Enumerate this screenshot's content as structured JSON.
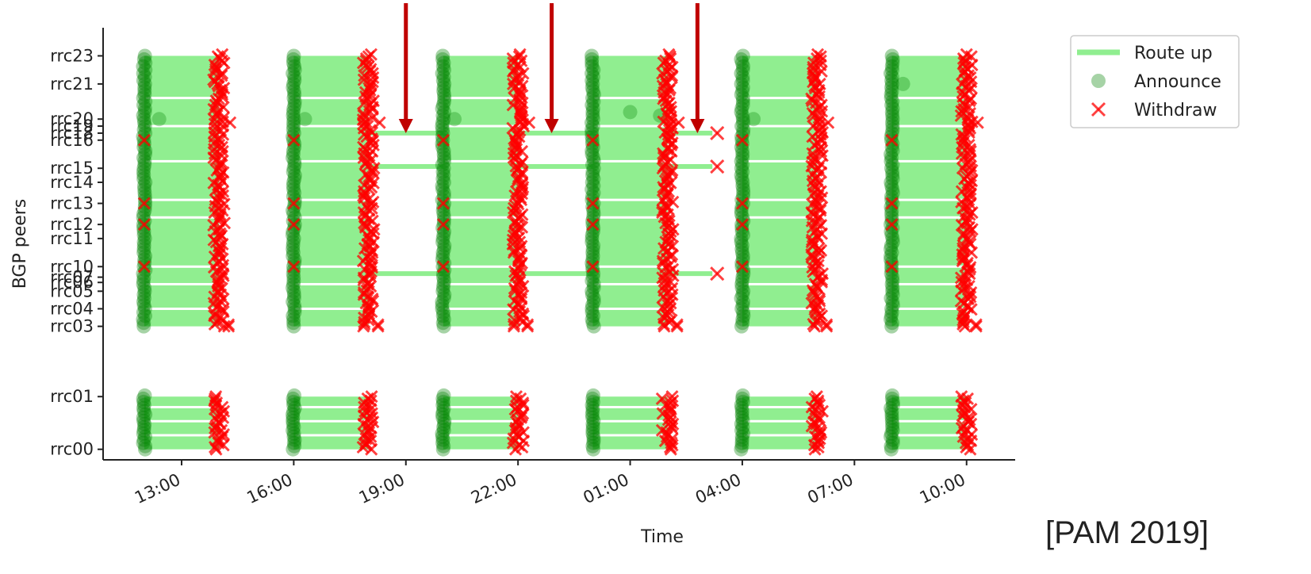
{
  "chart_data": {
    "type": "scatter",
    "title": "",
    "xlabel": "Time",
    "ylabel": "BGP peers",
    "x_tick_labels": [
      "13:00",
      "16:00",
      "19:00",
      "22:00",
      "01:00",
      "04:00",
      "07:00",
      "10:00"
    ],
    "x_tick_hours": [
      13,
      16,
      19,
      22,
      25,
      28,
      31,
      34
    ],
    "xlim_hours": [
      10.9,
      35.3
    ],
    "y_peers": [
      "rrc00",
      "rrc01",
      "rrc03",
      "rrc04",
      "rrc05",
      "rrc06",
      "rrc07",
      "rrc10",
      "rrc11",
      "rrc12",
      "rrc13",
      "rrc14",
      "rrc15",
      "rrc16",
      "rrc18",
      "rrc19",
      "rrc20",
      "rrc21",
      "rrc23"
    ],
    "y_peer_values": [
      0,
      1.5,
      3.5,
      4.0,
      4.5,
      4.75,
      4.9,
      5.2,
      6.0,
      6.4,
      7.0,
      7.6,
      8.0,
      8.8,
      9.0,
      9.2,
      9.4,
      10.4,
      11.2
    ],
    "ylim": [
      -0.3,
      12.0
    ],
    "grid": false,
    "legend": {
      "position": "top-right",
      "entries": [
        {
          "label": "Route up",
          "marker": "line",
          "color": "#90ee90"
        },
        {
          "label": "Announce",
          "marker": "circle",
          "color": "#008000"
        },
        {
          "label": "Withdraw",
          "marker": "x",
          "color": "#ff0000"
        }
      ]
    },
    "series": [
      {
        "name": "Route up",
        "kind": "band",
        "color": "#90ee90",
        "intervals_hours": [
          [
            12,
            14
          ],
          [
            16,
            18
          ],
          [
            20,
            22
          ],
          [
            24,
            26
          ],
          [
            28,
            30
          ],
          [
            32,
            34
          ]
        ],
        "y_ranges": [
          [
            3.5,
            11.2
          ],
          [
            0,
            1.5
          ]
        ]
      },
      {
        "name": "Route up (persisting)",
        "kind": "line",
        "color": "#90ee90",
        "lines": [
          {
            "peer": "rrc16",
            "y": 9.0,
            "x_start": 18,
            "x_end": 27.2
          },
          {
            "peer": "rrc15",
            "y": 8.05,
            "x_start": 18,
            "x_end": 27.2
          },
          {
            "peer": "rrc07",
            "y": 5.0,
            "x_start": 18,
            "x_end": 27.2
          }
        ]
      },
      {
        "name": "Announce",
        "kind": "scatter",
        "color": "#008000",
        "x_hours": [
          12,
          16,
          20,
          24,
          28,
          32
        ]
      },
      {
        "name": "Withdraw",
        "kind": "scatter",
        "color": "#ff0000",
        "x_hours": [
          14,
          18,
          22,
          26,
          30,
          34
        ]
      }
    ],
    "annotations": [
      {
        "type": "arrow",
        "color": "#c00000",
        "x_hours": 19.0
      },
      {
        "type": "arrow",
        "color": "#c00000",
        "x_hours": 22.9
      },
      {
        "type": "arrow",
        "color": "#c00000",
        "x_hours": 26.8
      }
    ]
  },
  "citation": "[PAM 2019]"
}
